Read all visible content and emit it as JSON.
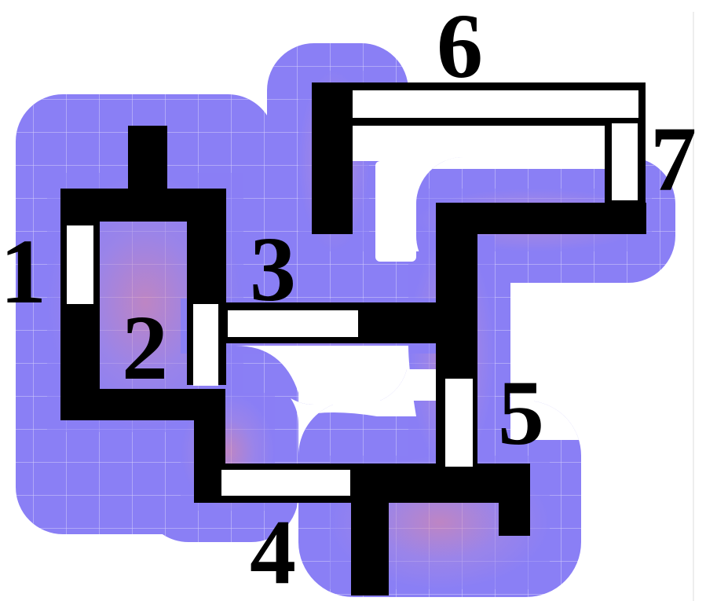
{
  "colors": {
    "background": "#ffffff",
    "halo": "#8a7ff5",
    "halo_core": "#e88a9c",
    "grid": "#c9c3fb",
    "wall": "#000000",
    "door": "#ffffff"
  },
  "labels": {
    "l1": "1",
    "l2": "2",
    "l3": "3",
    "l4": "4",
    "l5": "5",
    "l6": "6",
    "l7": "7"
  }
}
